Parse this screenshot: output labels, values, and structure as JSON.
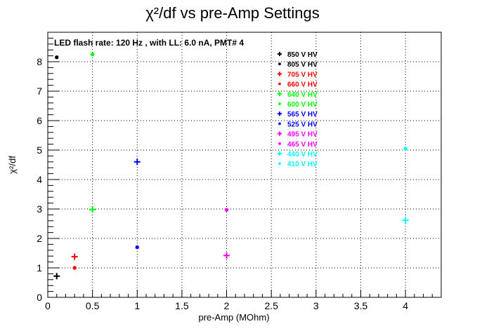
{
  "chart_data": {
    "type": "scatter",
    "title": "χ²/df vs pre-Amp Settings",
    "xlabel": "pre-Amp (MOhm)",
    "ylabel": "χ²/df",
    "annotation": "LED flash rate: 120 Hz , with LL: 6.0 nA, PMT# 4",
    "xlim": [
      0,
      4.4
    ],
    "ylim": [
      0,
      9
    ],
    "xticks": [
      "0",
      "0.5",
      "1",
      "1.5",
      "2",
      "2.5",
      "3",
      "3.5",
      "4"
    ],
    "yticks": [
      "0",
      "1",
      "2",
      "3",
      "4",
      "5",
      "6",
      "7",
      "8"
    ],
    "grid": true,
    "legend_position": "top-right",
    "series": [
      {
        "name": "850 V HV",
        "color": "#000000",
        "marker": "plus",
        "points": [
          [
            0.1,
            0.72
          ]
        ]
      },
      {
        "name": "805 V HV",
        "color": "#000000",
        "marker": "star",
        "points": [
          [
            0.1,
            8.15
          ]
        ]
      },
      {
        "name": "705 V HV",
        "color": "#ff0000",
        "marker": "plus",
        "points": [
          [
            0.3,
            1.38
          ]
        ]
      },
      {
        "name": "660 V HV",
        "color": "#ff0000",
        "marker": "star",
        "points": [
          [
            0.3,
            1.0
          ]
        ]
      },
      {
        "name": "640 V HV",
        "color": "#00ff00",
        "marker": "plus",
        "points": [
          [
            0.5,
            2.98
          ]
        ]
      },
      {
        "name": "600 V HV",
        "color": "#00ff00",
        "marker": "star",
        "points": [
          [
            0.5,
            8.25
          ]
        ]
      },
      {
        "name": "565 V HV",
        "color": "#0000ff",
        "marker": "plus",
        "points": [
          [
            1.0,
            4.6
          ]
        ]
      },
      {
        "name": "525 V HV",
        "color": "#0000ff",
        "marker": "star",
        "points": [
          [
            1.0,
            1.7
          ]
        ]
      },
      {
        "name": "495 V HV",
        "color": "#ff00ff",
        "marker": "plus",
        "points": [
          [
            2.0,
            1.42
          ]
        ]
      },
      {
        "name": "465 V HV",
        "color": "#ff00ff",
        "marker": "star",
        "points": [
          [
            2.0,
            2.97
          ]
        ]
      },
      {
        "name": "440 V HV",
        "color": "#00ffff",
        "marker": "plus",
        "points": [
          [
            4.0,
            2.62
          ]
        ]
      },
      {
        "name": "410 V HV",
        "color": "#00ffff",
        "marker": "star",
        "points": [
          [
            4.0,
            5.05
          ]
        ]
      }
    ]
  }
}
